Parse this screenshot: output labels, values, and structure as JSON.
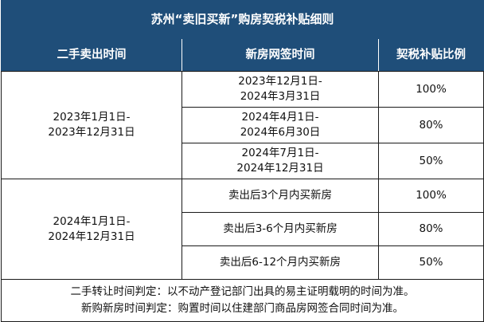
{
  "title": "苏州“卖旧买新”购房契税补贴细则",
  "headers": [
    "二手卖出时间",
    "新房网签时间",
    "契税补贴比例"
  ],
  "groups": [
    {
      "sale_period": [
        "2023年1月1日-",
        "2023年12月31日"
      ],
      "rows": [
        {
          "sign_period": [
            "2023年12月1日-",
            "2024年3月31日"
          ],
          "ratio": "100%"
        },
        {
          "sign_period": [
            "2024年4月1日-",
            "2024年6月30日"
          ],
          "ratio": "80%"
        },
        {
          "sign_period": [
            "2024年7月1日-",
            "2024年12月31日"
          ],
          "ratio": "50%"
        }
      ]
    },
    {
      "sale_period": [
        "2024年1月1日-",
        "2024年12月31日"
      ],
      "rows": [
        {
          "sign_period": [
            "卖出后3个月内买新房"
          ],
          "ratio": "100%"
        },
        {
          "sign_period": [
            "卖出后3-6个月内买新房"
          ],
          "ratio": "80%"
        },
        {
          "sign_period": [
            "卖出后6-12个月内买新房"
          ],
          "ratio": "50%"
        }
      ]
    }
  ],
  "notes": [
    "二手转让时间判定：以不动产登记部门出具的易主证明载明的时间为准。",
    "新购新房时间判定：购置时间以住建部门商品房网签合同时间为准。"
  ],
  "colors": {
    "header_bg": "#1f4e79",
    "header_text": "#ffffff"
  }
}
